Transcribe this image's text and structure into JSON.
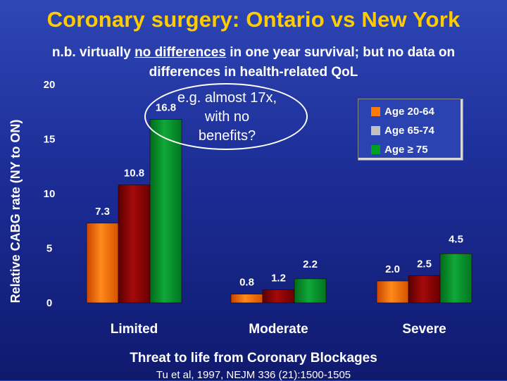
{
  "slide": {
    "title": "Coronary surgery: Ontario vs New York",
    "subtitle_parts": [
      {
        "text": "n.b. virtually ",
        "underline": false
      },
      {
        "text": "no differences",
        "underline": true
      },
      {
        "text": " in one year survival; but no data on differences in health-related QoL",
        "underline": false
      }
    ],
    "callout": "e.g. almost 17x, with no benefits?",
    "footer": "Threat to life from Coronary Blockages",
    "citation": "Tu et al, 1997, NEJM 336 (21):1500-1505"
  },
  "chart_data": {
    "type": "bar",
    "title": "",
    "xlabel": "",
    "ylabel": "Relative CABG rate (NY to ON)",
    "categories": [
      "Limited",
      "Moderate",
      "Severe"
    ],
    "series": [
      {
        "name": "Age 20-64",
        "color": "#ff6a00",
        "values": [
          7.3,
          0.8,
          2.0
        ],
        "labels": [
          "7.3",
          "0.8",
          "2.0"
        ]
      },
      {
        "name": "Age 65-74",
        "color": "#8b0000",
        "values": [
          10.8,
          1.2,
          2.5
        ],
        "labels": [
          "10.8",
          "1.2",
          "2.5"
        ]
      },
      {
        "name": "Age ≥ 75",
        "color": "#0a8a2a",
        "values": [
          16.8,
          2.2,
          4.5
        ],
        "labels": [
          "16.8",
          "2.2",
          "4.5"
        ]
      }
    ],
    "legend_swatches": [
      "#ff7a00",
      "#c0c0c0",
      "#00a020"
    ],
    "yticks": [
      "0",
      "5",
      "10",
      "15",
      "20"
    ],
    "ylim": [
      0,
      20
    ],
    "grid": false,
    "legend_position": "top-right"
  }
}
